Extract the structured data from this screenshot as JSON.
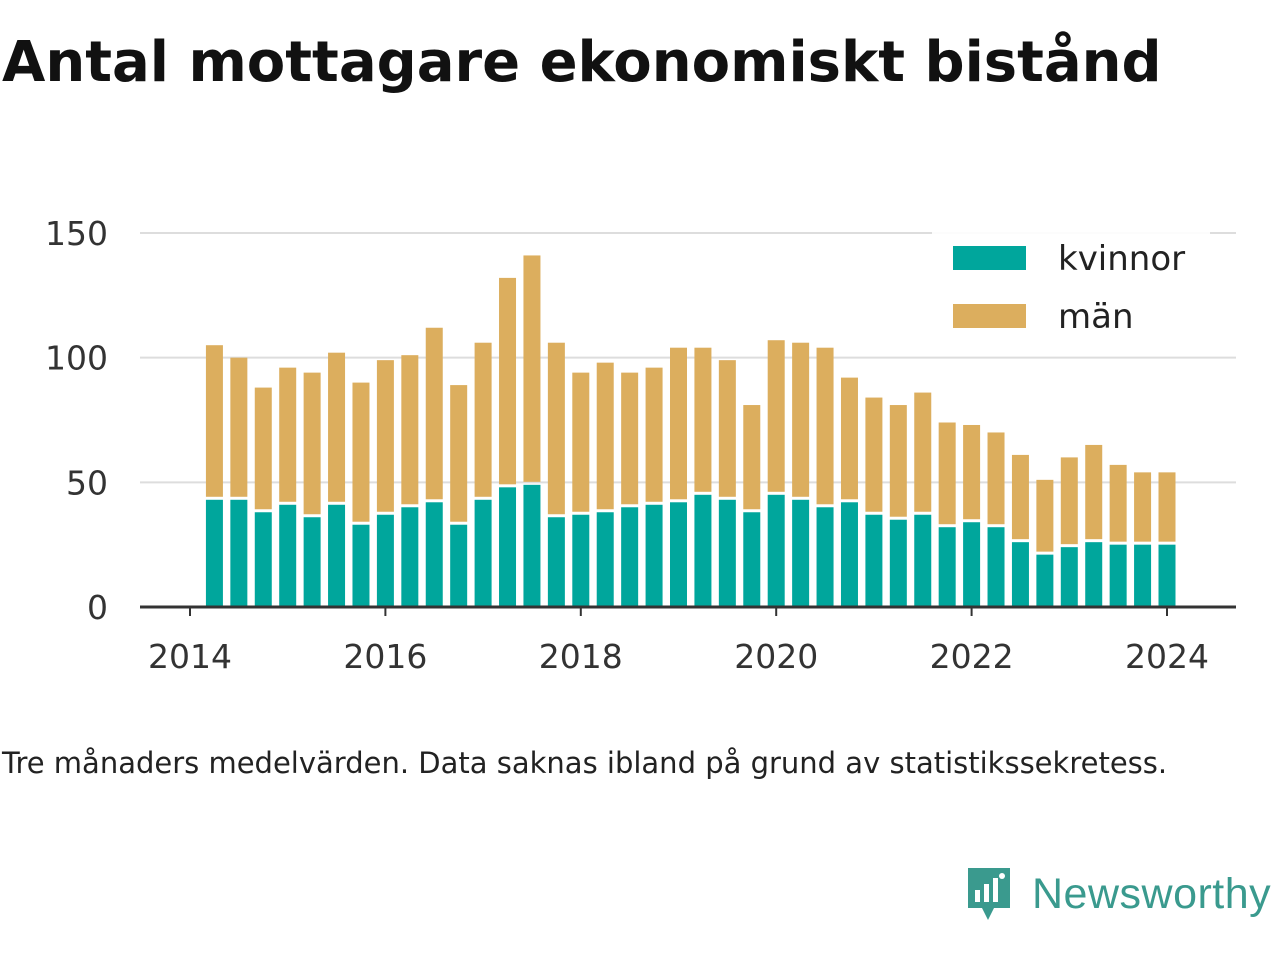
{
  "title": "Antal mottagare ekonomiskt bistånd",
  "note": "Tre månaders medelvärden. Data saknas ibland på grund av statistikssekretess.",
  "brand": {
    "name": "Newsworthy",
    "icon": "newsworthy-logo-icon"
  },
  "colors": {
    "kvinnor": "#00a69c",
    "man": "#dcae5e",
    "grid": "#dddddd",
    "axis": "#333333"
  },
  "chart_data": {
    "type": "bar",
    "stacked": true,
    "x": [
      2014.25,
      2014.5,
      2014.75,
      2015.0,
      2015.25,
      2015.5,
      2015.75,
      2016.0,
      2016.25,
      2016.5,
      2016.75,
      2017.0,
      2017.25,
      2017.5,
      2017.75,
      2018.0,
      2018.25,
      2018.5,
      2018.75,
      2019.0,
      2019.25,
      2019.5,
      2019.75,
      2020.0,
      2020.25,
      2020.5,
      2020.75,
      2021.0,
      2021.25,
      2021.5,
      2021.75,
      2022.0,
      2022.25,
      2022.5,
      2022.75,
      2023.0,
      2023.25,
      2023.5,
      2023.75,
      2024.0
    ],
    "series": [
      {
        "name": "kvinnor",
        "values": [
          43,
          43,
          38,
          41,
          36,
          41,
          33,
          37,
          40,
          42,
          33,
          43,
          48,
          49,
          36,
          37,
          38,
          40,
          41,
          42,
          45,
          43,
          38,
          45,
          43,
          40,
          42,
          37,
          35,
          37,
          32,
          34,
          32,
          26,
          21,
          24,
          26,
          25,
          25,
          25
        ]
      },
      {
        "name": "män",
        "values": [
          62,
          57,
          50,
          55,
          58,
          61,
          57,
          62,
          61,
          70,
          56,
          63,
          84,
          92,
          70,
          57,
          60,
          54,
          55,
          62,
          59,
          56,
          43,
          62,
          63,
          64,
          50,
          47,
          46,
          49,
          42,
          39,
          38,
          35,
          30,
          36,
          39,
          32,
          29,
          29
        ]
      }
    ],
    "xticks": [
      2014,
      2016,
      2018,
      2020,
      2022,
      2024
    ],
    "xtick_labels": [
      "2014",
      "2016",
      "2018",
      "2020",
      "2022",
      "2024"
    ],
    "yticks": [
      0,
      50,
      100,
      150
    ],
    "ytick_labels": [
      "0",
      "50",
      "100",
      "150"
    ],
    "xlim": [
      2013.5,
      2024.7
    ],
    "ylim": [
      0,
      150
    ],
    "grid": "horizontal",
    "legend": {
      "placement": "top-right",
      "entries": [
        "kvinnor",
        "män"
      ]
    }
  }
}
